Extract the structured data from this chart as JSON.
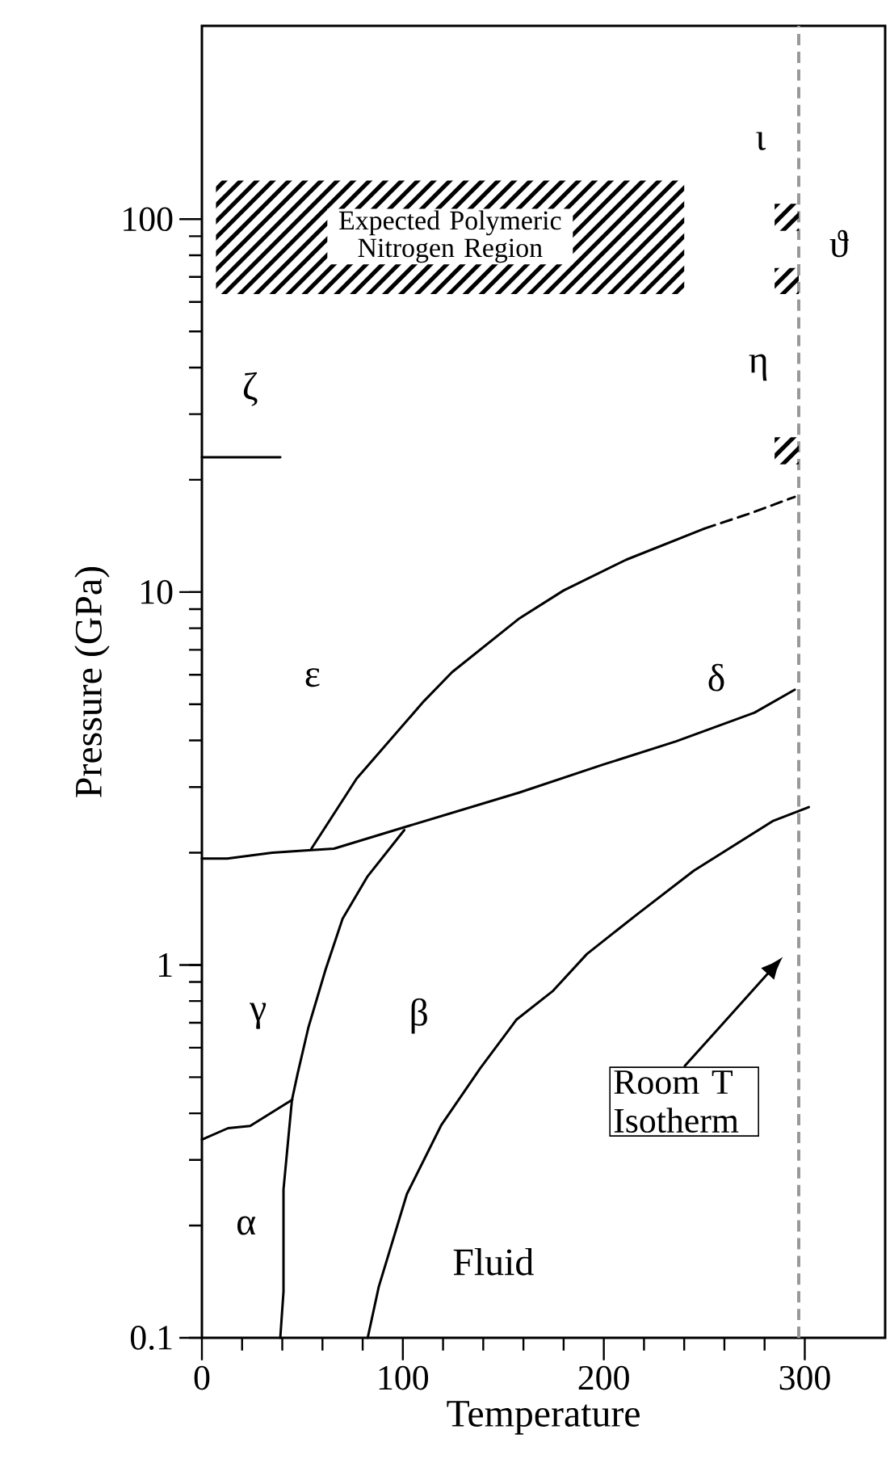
{
  "chart_data": {
    "type": "line",
    "xlabel": "Temperature",
    "ylabel": "Pressure (GPa)",
    "log": "y",
    "xlim": [
      0,
      340
    ],
    "ylim": [
      0.1,
      330
    ],
    "xticks": [
      0,
      100,
      200,
      300
    ],
    "yticks": [
      0.1,
      1,
      10,
      100
    ],
    "series": [
      {
        "color": "#000000",
        "x": [
          0,
          13,
          24,
          45
        ],
        "values": [
          0.34,
          0.365,
          0.37,
          0.435
        ]
      },
      {
        "color": "#000000",
        "x": [
          39,
          40.6,
          40.6,
          44.8,
          47.6,
          53,
          61.5,
          70,
          82.5,
          100.7
        ],
        "values": [
          0.1,
          0.133,
          0.25,
          0.434,
          0.51,
          0.68,
          0.97,
          1.33,
          1.73,
          2.3
        ]
      },
      {
        "color": "#000000",
        "x": [
          0,
          12.6,
          35,
          53,
          65.7,
          100.7,
          158,
          200,
          236,
          275,
          295
        ],
        "values": [
          1.93,
          1.93,
          2.0,
          2.03,
          2.05,
          2.34,
          2.9,
          3.45,
          3.98,
          4.75,
          5.47
        ]
      },
      {
        "color": "#000000",
        "x": [
          54.5,
          77,
          110.5,
          124.5,
          158,
          180,
          211,
          250
        ],
        "values": [
          2.05,
          3.16,
          5.1,
          6.1,
          8.5,
          10.1,
          12.2,
          14.8
        ]
      },
      {
        "color": "#000000",
        "line_style": "dashed",
        "x": [
          250,
          272,
          295
        ],
        "values": [
          14.8,
          16.2,
          18.0
        ]
      },
      {
        "color": "#000000",
        "x": [
          82.5,
          88,
          102,
          119,
          138.5,
          156.6,
          174.8,
          191.6,
          216.8,
          244.8,
          284,
          302
        ],
        "values": [
          0.1,
          0.137,
          0.243,
          0.371,
          0.528,
          0.714,
          0.853,
          1.07,
          1.37,
          1.79,
          2.43,
          2.65
        ]
      },
      {
        "color": "#000000",
        "x": [
          0,
          39
        ],
        "values": [
          23,
          23
        ]
      }
    ],
    "ref_lines": [
      {
        "axis": "x",
        "value": 297,
        "label": "Room T Isotherm",
        "color": "#999999",
        "line_style": "dashed"
      }
    ],
    "annotations": [
      "ι",
      "ϑ",
      "η",
      "ζ",
      "ε",
      "δ",
      "γ",
      "β",
      "α",
      "Fluid",
      "Expected Polymeric Nitrogen Region"
    ]
  }
}
